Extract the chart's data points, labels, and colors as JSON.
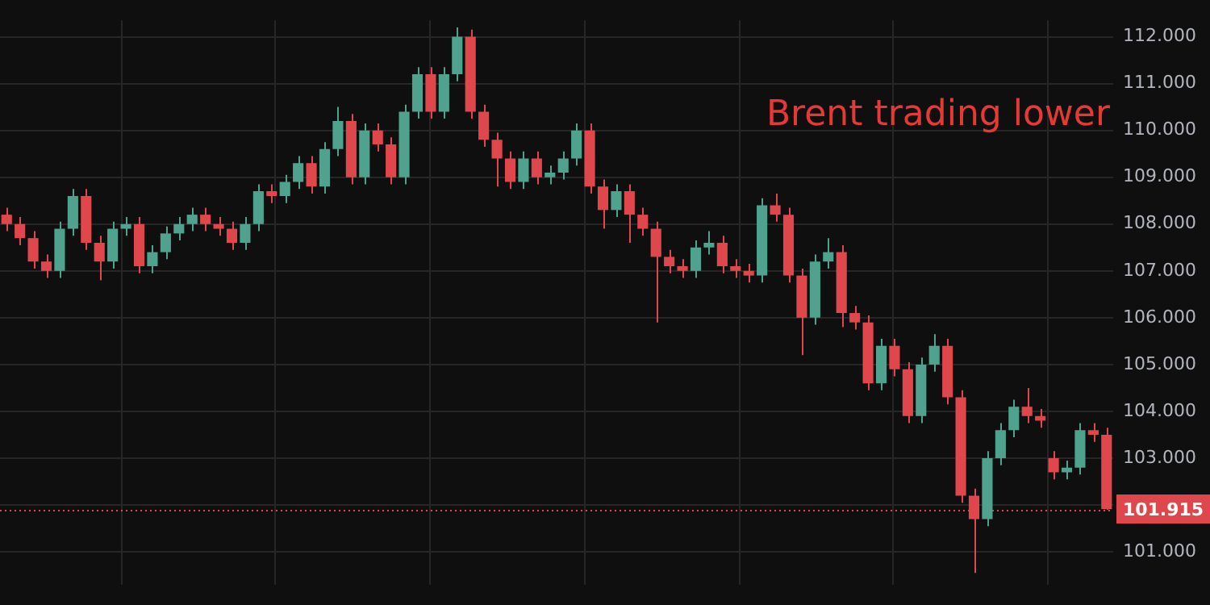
{
  "chart_data": {
    "type": "candlestick",
    "annotations": [
      "Brent trading lower"
    ],
    "categories": [
      null,
      null,
      null,
      null,
      null,
      null,
      null,
      null,
      null,
      null,
      null,
      null,
      null,
      null,
      null,
      null,
      null,
      null,
      null,
      null,
      null,
      null,
      null,
      null,
      null,
      null,
      null,
      null,
      null,
      null,
      null,
      null,
      null,
      null,
      null,
      null,
      null,
      null,
      null,
      null,
      null,
      null,
      null,
      null,
      null,
      null,
      null,
      null,
      null,
      null,
      null,
      null,
      null,
      null,
      null,
      null,
      null,
      null,
      null,
      null,
      null,
      null,
      null,
      null,
      null,
      null,
      null,
      null,
      null,
      null,
      null,
      null,
      null,
      null,
      null,
      null,
      null,
      null,
      null,
      null,
      null,
      null,
      null,
      null
    ],
    "ohlc": [
      [
        108.2,
        108.35,
        107.85,
        108.0
      ],
      [
        108.0,
        108.15,
        107.55,
        107.7
      ],
      [
        107.7,
        107.85,
        107.05,
        107.2
      ],
      [
        107.2,
        107.35,
        106.85,
        107.0
      ],
      [
        107.0,
        108.05,
        106.85,
        107.9
      ],
      [
        107.9,
        108.75,
        107.75,
        108.6
      ],
      [
        108.6,
        108.75,
        107.45,
        107.6
      ],
      [
        107.6,
        107.75,
        106.8,
        107.2
      ],
      [
        107.2,
        108.05,
        107.05,
        107.9
      ],
      [
        107.9,
        108.15,
        107.75,
        108.0
      ],
      [
        108.0,
        108.15,
        106.95,
        107.1
      ],
      [
        107.1,
        107.55,
        106.95,
        107.4
      ],
      [
        107.4,
        107.95,
        107.25,
        107.8
      ],
      [
        107.8,
        108.15,
        107.65,
        108.0
      ],
      [
        108.0,
        108.35,
        107.85,
        108.2
      ],
      [
        108.2,
        108.35,
        107.85,
        108.0
      ],
      [
        108.0,
        108.15,
        107.75,
        107.9
      ],
      [
        107.9,
        108.05,
        107.45,
        107.6
      ],
      [
        107.6,
        108.15,
        107.45,
        108.0
      ],
      [
        108.0,
        108.85,
        107.85,
        108.7
      ],
      [
        108.7,
        108.85,
        108.45,
        108.6
      ],
      [
        108.6,
        109.05,
        108.45,
        108.9
      ],
      [
        108.9,
        109.45,
        108.75,
        109.3
      ],
      [
        109.3,
        109.45,
        108.65,
        108.8
      ],
      [
        108.8,
        109.75,
        108.65,
        109.6
      ],
      [
        109.6,
        110.5,
        109.45,
        110.2
      ],
      [
        110.2,
        110.35,
        108.85,
        109.0
      ],
      [
        109.0,
        110.15,
        108.85,
        110.0
      ],
      [
        110.0,
        110.15,
        109.55,
        109.7
      ],
      [
        109.7,
        109.85,
        108.85,
        109.0
      ],
      [
        109.0,
        110.55,
        108.85,
        110.4
      ],
      [
        110.4,
        111.35,
        110.25,
        111.2
      ],
      [
        111.2,
        111.35,
        110.25,
        110.4
      ],
      [
        110.4,
        111.35,
        110.25,
        111.2
      ],
      [
        111.2,
        112.2,
        111.05,
        112.0
      ],
      [
        112.0,
        112.15,
        110.25,
        110.4
      ],
      [
        110.4,
        110.55,
        109.65,
        109.8
      ],
      [
        109.8,
        109.95,
        108.8,
        109.4
      ],
      [
        109.4,
        109.55,
        108.75,
        108.9
      ],
      [
        108.9,
        109.55,
        108.75,
        109.4
      ],
      [
        109.4,
        109.55,
        108.85,
        109.0
      ],
      [
        109.0,
        109.25,
        108.85,
        109.1
      ],
      [
        109.1,
        109.55,
        108.95,
        109.4
      ],
      [
        109.4,
        110.15,
        109.25,
        110.0
      ],
      [
        110.0,
        110.15,
        108.65,
        108.8
      ],
      [
        108.8,
        108.95,
        107.9,
        108.3
      ],
      [
        108.3,
        108.85,
        108.15,
        108.7
      ],
      [
        108.7,
        108.85,
        107.6,
        108.2
      ],
      [
        108.2,
        108.35,
        107.75,
        107.9
      ],
      [
        107.9,
        108.05,
        105.9,
        107.3
      ],
      [
        107.3,
        107.45,
        106.95,
        107.1
      ],
      [
        107.1,
        107.25,
        106.85,
        107.0
      ],
      [
        107.0,
        107.65,
        106.85,
        107.5
      ],
      [
        107.5,
        107.85,
        107.35,
        107.6
      ],
      [
        107.6,
        107.75,
        106.95,
        107.1
      ],
      [
        107.1,
        107.25,
        106.85,
        107.0
      ],
      [
        107.0,
        107.15,
        106.75,
        106.9
      ],
      [
        106.9,
        108.55,
        106.75,
        108.4
      ],
      [
        108.4,
        108.65,
        108.05,
        108.2
      ],
      [
        108.2,
        108.35,
        106.75,
        106.9
      ],
      [
        106.9,
        107.05,
        105.2,
        106.0
      ],
      [
        106.0,
        107.35,
        105.85,
        107.2
      ],
      [
        107.2,
        107.7,
        107.05,
        107.4
      ],
      [
        107.4,
        107.55,
        105.8,
        106.1
      ],
      [
        106.1,
        106.25,
        105.75,
        105.9
      ],
      [
        105.9,
        106.05,
        104.45,
        104.6
      ],
      [
        104.6,
        105.55,
        104.45,
        105.4
      ],
      [
        105.4,
        105.55,
        104.75,
        104.9
      ],
      [
        104.9,
        105.05,
        103.75,
        103.9
      ],
      [
        103.9,
        105.15,
        103.75,
        105.0
      ],
      [
        105.0,
        105.65,
        104.85,
        105.4
      ],
      [
        105.4,
        105.55,
        104.15,
        104.3
      ],
      [
        104.3,
        104.45,
        102.05,
        102.2
      ],
      [
        102.2,
        102.35,
        100.55,
        101.7
      ],
      [
        101.7,
        103.15,
        101.55,
        103.0
      ],
      [
        103.0,
        103.75,
        102.85,
        103.6
      ],
      [
        103.6,
        104.25,
        103.45,
        104.1
      ],
      [
        104.1,
        104.5,
        103.75,
        103.9
      ],
      [
        103.9,
        104.05,
        103.65,
        103.8
      ],
      [
        103.0,
        103.15,
        102.55,
        102.7
      ],
      [
        102.7,
        102.95,
        102.55,
        102.8
      ],
      [
        102.8,
        103.75,
        102.65,
        103.6
      ],
      [
        103.6,
        103.75,
        103.35,
        103.5
      ],
      [
        103.5,
        103.65,
        101.9,
        101.915
      ]
    ],
    "colors": [
      "#e0474c",
      "#e0474c",
      "#e0474c",
      "#e0474c",
      "#4fa38e",
      "#4fa38e",
      "#e0474c",
      "#e0474c",
      "#4fa38e",
      "#4fa38e",
      "#e0474c",
      "#4fa38e",
      "#4fa38e",
      "#4fa38e",
      "#4fa38e",
      "#e0474c",
      "#e0474c",
      "#e0474c",
      "#4fa38e",
      "#4fa38e",
      "#e0474c",
      "#4fa38e",
      "#4fa38e",
      "#e0474c",
      "#4fa38e",
      "#4fa38e",
      "#e0474c",
      "#4fa38e",
      "#e0474c",
      "#e0474c",
      "#4fa38e",
      "#4fa38e",
      "#e0474c",
      "#4fa38e",
      "#4fa38e",
      "#e0474c",
      "#e0474c",
      "#e0474c",
      "#e0474c",
      "#4fa38e",
      "#e0474c",
      "#4fa38e",
      "#4fa38e",
      "#4fa38e",
      "#e0474c",
      "#e0474c",
      "#4fa38e",
      "#e0474c",
      "#e0474c",
      "#e0474c",
      "#e0474c",
      "#e0474c",
      "#4fa38e",
      "#4fa38e",
      "#e0474c",
      "#e0474c",
      "#e0474c",
      "#4fa38e",
      "#e0474c",
      "#e0474c",
      "#e0474c",
      "#4fa38e",
      "#4fa38e",
      "#e0474c",
      "#e0474c",
      "#e0474c",
      "#4fa38e",
      "#e0474c",
      "#e0474c",
      "#4fa38e",
      "#4fa38e",
      "#e0474c",
      "#e0474c",
      "#e0474c",
      "#4fa38e",
      "#4fa38e",
      "#4fa38e",
      "#e0474c",
      "#e0474c",
      "#e0474c",
      "#4fa38e",
      "#4fa38e",
      "#e0474c",
      "#e0474c"
    ],
    "ylim": [
      100.3,
      112.35
    ],
    "yticks": [
      {
        "value": 101,
        "label": "101.000"
      },
      {
        "value": 102,
        "label": null
      },
      {
        "value": 103,
        "label": "103.000"
      },
      {
        "value": 104,
        "label": "104.000"
      },
      {
        "value": 105,
        "label": "105.000"
      },
      {
        "value": 106,
        "label": "106.000"
      },
      {
        "value": 107,
        "label": "107.000"
      },
      {
        "value": 108,
        "label": "108.000"
      },
      {
        "value": 109,
        "label": "109.000"
      },
      {
        "value": 110,
        "label": "110.000"
      },
      {
        "value": 111,
        "label": "111.000"
      },
      {
        "value": 112,
        "label": "112.000"
      }
    ],
    "grid": true,
    "ref_lines": [
      {
        "axis": "y",
        "value": 101.915,
        "label": "101.915",
        "color": "#e0474c",
        "line_style": "dotted"
      }
    ]
  }
}
